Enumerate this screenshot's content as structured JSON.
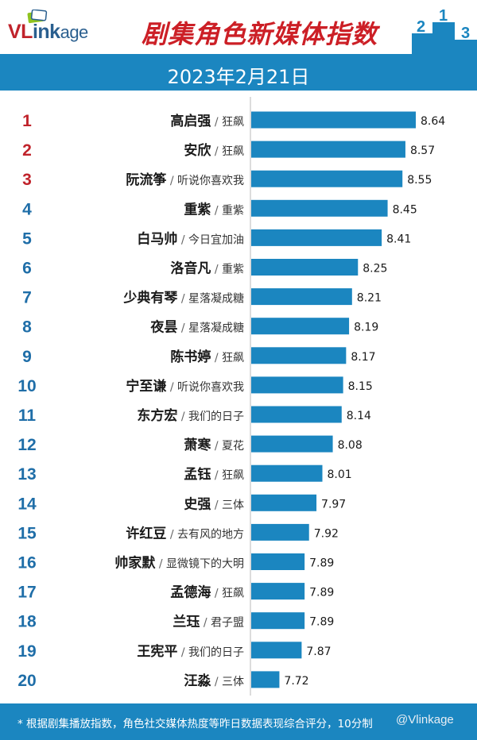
{
  "header": {
    "logo_v": "VL",
    "logo_rest": "ink",
    "logo_tail": "age",
    "title": "剧集角色新媒体指数",
    "podium_labels": [
      "2",
      "1",
      "3"
    ]
  },
  "date": "2023年2月21日",
  "footer": {
    "note": "* 根据剧集播放指数，角色社交媒体热度等昨日数据表现综合评分，10分制",
    "watermark": "@Vlinkage"
  },
  "colors": {
    "bar": "#1b86c0",
    "rank_red": "#c0232b",
    "rank_blue": "#1f6ea8",
    "title_red": "#cc1f26"
  },
  "chart_data": {
    "type": "bar",
    "orientation": "horizontal",
    "xlim": [
      0,
      8.64
    ],
    "rows": [
      {
        "rank": "1",
        "name": "高启强",
        "show": "狂飙",
        "value": 8.64
      },
      {
        "rank": "2",
        "name": "安欣",
        "show": "狂飙",
        "value": 8.57
      },
      {
        "rank": "3",
        "name": "阮流筝",
        "show": "听说你喜欢我",
        "value": 8.55
      },
      {
        "rank": "4",
        "name": "重紫",
        "show": "重紫",
        "value": 8.45
      },
      {
        "rank": "5",
        "name": "白马帅",
        "show": "今日宜加油",
        "value": 8.41
      },
      {
        "rank": "6",
        "name": "洛音凡",
        "show": "重紫",
        "value": 8.25
      },
      {
        "rank": "7",
        "name": "少典有琴",
        "show": "星落凝成糖",
        "value": 8.21
      },
      {
        "rank": "8",
        "name": "夜昙",
        "show": "星落凝成糖",
        "value": 8.19
      },
      {
        "rank": "9",
        "name": "陈书婷",
        "show": "狂飙",
        "value": 8.17
      },
      {
        "rank": "10",
        "name": "宁至谦",
        "show": "听说你喜欢我",
        "value": 8.15
      },
      {
        "rank": "11",
        "name": "东方宏",
        "show": "我们的日子",
        "value": 8.14
      },
      {
        "rank": "12",
        "name": "萧寒",
        "show": "夏花",
        "value": 8.08
      },
      {
        "rank": "13",
        "name": "孟钰",
        "show": "狂飙",
        "value": 8.01
      },
      {
        "rank": "14",
        "name": "史强",
        "show": "三体",
        "value": 7.97
      },
      {
        "rank": "15",
        "name": "许红豆",
        "show": "去有风的地方",
        "value": 7.92
      },
      {
        "rank": "16",
        "name": "帅家默",
        "show": "显微镜下的大明",
        "value": 7.89
      },
      {
        "rank": "17",
        "name": "孟德海",
        "show": "狂飙",
        "value": 7.89
      },
      {
        "rank": "18",
        "name": "兰珏",
        "show": "君子盟",
        "value": 7.89
      },
      {
        "rank": "19",
        "name": "王宪平",
        "show": "我们的日子",
        "value": 7.87
      },
      {
        "rank": "20",
        "name": "汪淼",
        "show": "三体",
        "value": 7.72
      }
    ]
  }
}
